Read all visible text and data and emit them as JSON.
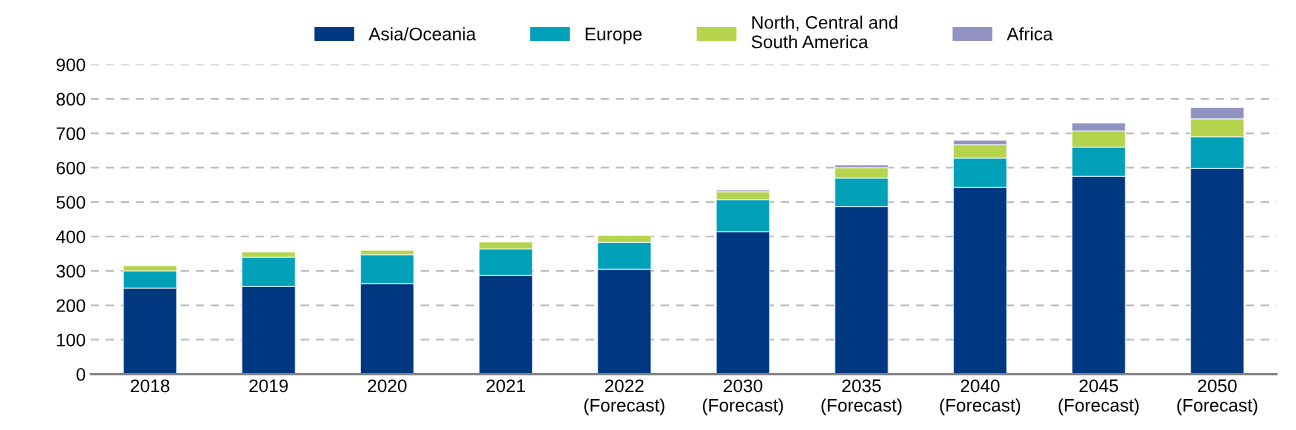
{
  "chart_data": {
    "type": "bar",
    "stacked": true,
    "categories": [
      "2018",
      "2019",
      "2020",
      "2021",
      "2022\n(Forecast)",
      "2030\n(Forecast)",
      "2035\n(Forecast)",
      "2040\n(Forecast)",
      "2045\n(Forecast)",
      "2050\n(Forecast)"
    ],
    "series": [
      {
        "name": "Asia/Oceania",
        "color": "#003781",
        "values": [
          250,
          255,
          263,
          287,
          305,
          414,
          487,
          543,
          575,
          598
        ]
      },
      {
        "name": "Europe",
        "color": "#00a0b9",
        "values": [
          50,
          85,
          84,
          77,
          78,
          93,
          83,
          85,
          85,
          92
        ]
      },
      {
        "name": "North, Central and\nSouth America",
        "color": "#b5d34d",
        "values": [
          15,
          15,
          13,
          20,
          20,
          23,
          30,
          39,
          47,
          52
        ]
      },
      {
        "name": "Africa",
        "color": "#9191c2",
        "values": [
          null,
          null,
          null,
          null,
          null,
          5,
          8,
          13,
          23,
          33
        ]
      }
    ],
    "ylim": [
      0,
      900
    ],
    "yticks": [
      0,
      100,
      200,
      300,
      400,
      500,
      600,
      700,
      800,
      900
    ],
    "grid": "y",
    "legend": "top"
  }
}
